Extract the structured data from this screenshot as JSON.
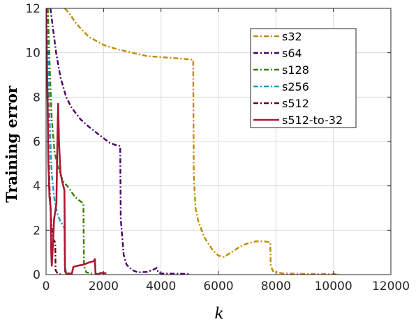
{
  "chart_data": {
    "type": "line",
    "xlabel": "k",
    "ylabel": "Training error",
    "xlim": [
      0,
      12000
    ],
    "ylim": [
      0,
      12
    ],
    "xticks": [
      0,
      2000,
      4000,
      6000,
      8000,
      10000,
      12000
    ],
    "yticks": [
      0,
      2,
      4,
      6,
      8,
      10,
      12
    ],
    "grid": true,
    "legend_position": "top-right",
    "series": [
      {
        "name": "s32",
        "color": "#c08a00",
        "dash": "dash-dot",
        "points": [
          [
            650,
            12
          ],
          [
            800,
            11.8
          ],
          [
            1000,
            11.4
          ],
          [
            1200,
            11.1
          ],
          [
            1500,
            10.7
          ],
          [
            1800,
            10.5
          ],
          [
            2000,
            10.35
          ],
          [
            2500,
            10.15
          ],
          [
            3000,
            10.0
          ],
          [
            3500,
            9.85
          ],
          [
            4000,
            9.8
          ],
          [
            4500,
            9.75
          ],
          [
            5000,
            9.7
          ],
          [
            5120,
            9.68
          ],
          [
            5140,
            4.5
          ],
          [
            5200,
            3.0
          ],
          [
            5300,
            2.4
          ],
          [
            5500,
            1.7
          ],
          [
            5800,
            1.1
          ],
          [
            6000,
            0.85
          ],
          [
            6200,
            0.8
          ],
          [
            6500,
            1.05
          ],
          [
            6800,
            1.3
          ],
          [
            7000,
            1.4
          ],
          [
            7300,
            1.5
          ],
          [
            7600,
            1.5
          ],
          [
            7800,
            1.45
          ],
          [
            7820,
            0.4
          ],
          [
            7900,
            0.15
          ],
          [
            8200,
            0.06
          ],
          [
            9000,
            0.03
          ],
          [
            10200,
            0.02
          ]
        ]
      },
      {
        "name": "s64",
        "color": "#4a0069",
        "dash": "dash-dot",
        "points": [
          [
            150,
            12
          ],
          [
            250,
            11.0
          ],
          [
            350,
            10.0
          ],
          [
            500,
            8.9
          ],
          [
            700,
            8.0
          ],
          [
            900,
            7.5
          ],
          [
            1200,
            7.0
          ],
          [
            1500,
            6.65
          ],
          [
            1800,
            6.35
          ],
          [
            2000,
            6.15
          ],
          [
            2200,
            5.95
          ],
          [
            2400,
            5.85
          ],
          [
            2580,
            5.8
          ],
          [
            2600,
            2.5
          ],
          [
            2700,
            0.9
          ],
          [
            2800,
            0.45
          ],
          [
            3000,
            0.2
          ],
          [
            3200,
            0.1
          ],
          [
            3500,
            0.12
          ],
          [
            3700,
            0.2
          ],
          [
            3850,
            0.3
          ],
          [
            3900,
            0.1
          ],
          [
            4000,
            0.05
          ],
          [
            5000,
            0.03
          ]
        ]
      },
      {
        "name": "s128",
        "color": "#3a7d00",
        "dash": "dash-dot",
        "points": [
          [
            60,
            12
          ],
          [
            100,
            10.5
          ],
          [
            150,
            8.5
          ],
          [
            200,
            7.0
          ],
          [
            250,
            6.2
          ],
          [
            300,
            5.5
          ],
          [
            400,
            4.9
          ],
          [
            500,
            4.5
          ],
          [
            600,
            4.2
          ],
          [
            800,
            3.9
          ],
          [
            1000,
            3.5
          ],
          [
            1200,
            3.3
          ],
          [
            1300,
            3.2
          ],
          [
            1320,
            0.4
          ],
          [
            1400,
            0.1
          ],
          [
            1600,
            0.05
          ]
        ]
      },
      {
        "name": "s256",
        "color": "#1a9bc4",
        "dash": "dash-dot",
        "points": [
          [
            20,
            12
          ],
          [
            60,
            10.0
          ],
          [
            100,
            8.0
          ],
          [
            150,
            6.0
          ],
          [
            200,
            4.5
          ],
          [
            300,
            3.3
          ],
          [
            400,
            2.7
          ],
          [
            500,
            2.4
          ],
          [
            600,
            2.2
          ],
          [
            640,
            2.1
          ],
          [
            650,
            0.4
          ],
          [
            700,
            0.1
          ],
          [
            800,
            0.05
          ]
        ]
      },
      {
        "name": "s512",
        "color": "#6b0013",
        "dash": "dash-dot",
        "points": [
          [
            10,
            12
          ],
          [
            40,
            9.0
          ],
          [
            80,
            6.0
          ],
          [
            120,
            4.0
          ],
          [
            160,
            2.8
          ],
          [
            200,
            2.0
          ],
          [
            250,
            1.6
          ],
          [
            300,
            1.5
          ],
          [
            320,
            1.4
          ],
          [
            330,
            0.2
          ],
          [
            400,
            0.05
          ],
          [
            500,
            0.02
          ]
        ]
      },
      {
        "name": "s512-to-32",
        "color": "#ae1733",
        "dash": "solid",
        "points": [
          [
            0,
            12
          ],
          [
            50,
            8.0
          ],
          [
            80,
            5.0
          ],
          [
            120,
            3.5
          ],
          [
            160,
            3.0
          ],
          [
            180,
            1.0
          ],
          [
            200,
            0.4
          ],
          [
            240,
            1.4
          ],
          [
            280,
            2.5
          ],
          [
            360,
            3.2
          ],
          [
            400,
            6.5
          ],
          [
            420,
            7.7
          ],
          [
            450,
            6.0
          ],
          [
            500,
            4.6
          ],
          [
            560,
            4.2
          ],
          [
            640,
            3.8
          ],
          [
            660,
            0.15
          ],
          [
            700,
            0.05
          ],
          [
            900,
            0.05
          ],
          [
            950,
            0.35
          ],
          [
            1100,
            0.4
          ],
          [
            1300,
            0.45
          ],
          [
            1500,
            0.55
          ],
          [
            1650,
            0.6
          ],
          [
            1700,
            0.7
          ],
          [
            1720,
            0.05
          ],
          [
            1800,
            0.02
          ],
          [
            1900,
            0.08
          ],
          [
            2100,
            0.06
          ]
        ]
      }
    ]
  }
}
